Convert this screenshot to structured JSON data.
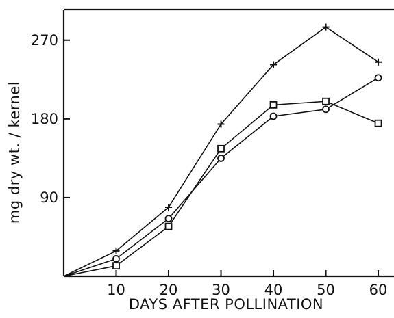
{
  "chart_data": {
    "type": "line",
    "title": "",
    "xlabel": "DAYS AFTER POLLINATION",
    "ylabel": "mg dry wt. / kernel",
    "xlim": [
      0,
      63
    ],
    "ylim": [
      0,
      305
    ],
    "x_ticks": [
      10,
      20,
      30,
      40,
      50,
      60
    ],
    "x_tick_labels": [
      "10",
      "20",
      "30",
      "40",
      "50",
      "60"
    ],
    "y_ticks": [
      90,
      180,
      270
    ],
    "y_tick_labels": [
      "90",
      "180",
      "270"
    ],
    "grid": false,
    "legend": "none",
    "colors": {
      "line": "#111111",
      "background": "#ffffff"
    },
    "series": [
      {
        "marker": "plus",
        "x": [
          0,
          10,
          20,
          30,
          40,
          50,
          60
        ],
        "y": [
          0,
          29,
          79,
          174,
          242,
          285,
          245
        ]
      },
      {
        "marker": "square",
        "x": [
          0,
          10,
          20,
          30,
          40,
          50,
          60
        ],
        "y": [
          0,
          12,
          57,
          146,
          196,
          200,
          175
        ]
      },
      {
        "marker": "circle",
        "x": [
          0,
          10,
          20,
          30,
          40,
          50,
          60
        ],
        "y": [
          0,
          20,
          66,
          135,
          183,
          191,
          227
        ]
      }
    ]
  }
}
